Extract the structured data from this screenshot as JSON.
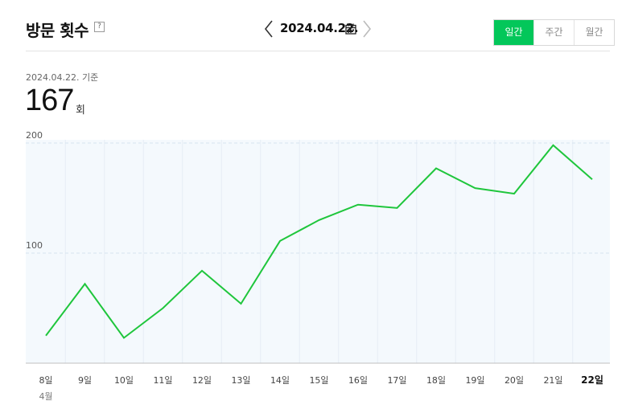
{
  "header": {
    "title": "방문 횟수",
    "help_icon": "?",
    "date": "2024.04.22.",
    "prev_icon": "chevron-left-icon",
    "next_icon": "chevron-right-icon",
    "calendar_icon": "calendar-icon"
  },
  "tabs": [
    {
      "label": "일간",
      "active": true
    },
    {
      "label": "주간",
      "active": false
    },
    {
      "label": "월간",
      "active": false
    }
  ],
  "summary": {
    "basis": "2024.04.22. 기준",
    "value": "167",
    "unit": "회"
  },
  "colors": {
    "accent": "#03c75a",
    "line": "#1fc63c",
    "plot_bg": "#f4f9fd",
    "grid": "#d6e4ef"
  },
  "chart_data": {
    "type": "line",
    "categories": [
      "8일",
      "9일",
      "10일",
      "11일",
      "12일",
      "13일",
      "14일",
      "15일",
      "16일",
      "17일",
      "18일",
      "19일",
      "20일",
      "21일",
      "22일"
    ],
    "category_sub": "4월",
    "highlight_category": "22일",
    "values": [
      25,
      72,
      23,
      50,
      84,
      54,
      111,
      130,
      144,
      141,
      177,
      159,
      154,
      198,
      167
    ],
    "yticks": [
      100,
      200
    ],
    "ylim": [
      0,
      200
    ],
    "grid": true,
    "title": "",
    "xlabel": "",
    "ylabel": ""
  }
}
